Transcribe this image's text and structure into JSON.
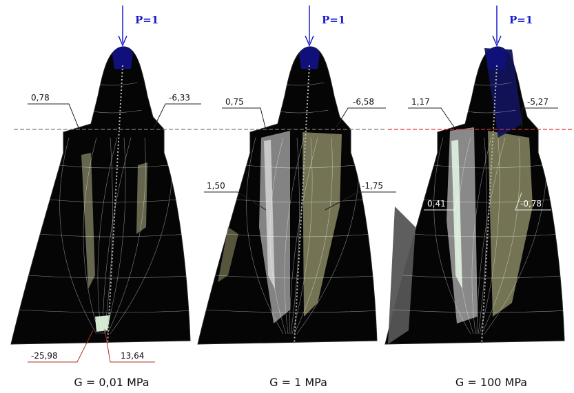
{
  "panels": [
    {
      "load": "P=1",
      "caption": "G = 0,01 MPa",
      "labels": [
        "0,78",
        "-6,33",
        "-25,98",
        "13,64"
      ]
    },
    {
      "load": "P=1",
      "caption": "G = 1 MPa",
      "labels": [
        "0,75",
        "-6,58",
        "1,50",
        "-1,75"
      ]
    },
    {
      "load": "P=1",
      "caption": "G = 100 MPa",
      "labels": [
        "1,17",
        "-5,27",
        "0,41",
        "-0,78"
      ]
    }
  ]
}
